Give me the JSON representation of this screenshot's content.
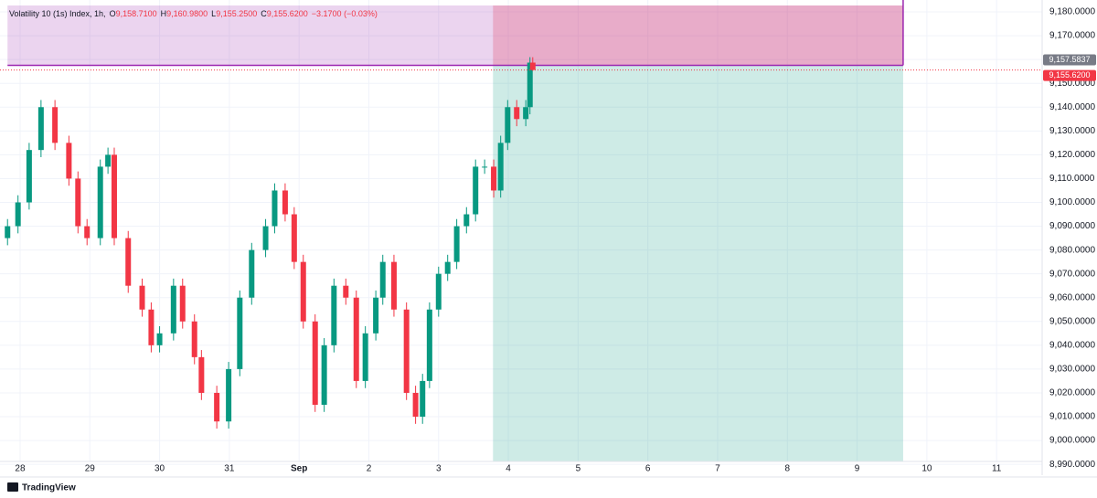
{
  "chart_data": {
    "type": "candlestick",
    "header": {
      "symbol": "Volatility 10 (1s) Index, 1h,",
      "ohlc": [
        {
          "key": "O",
          "text": "9,158.7100"
        },
        {
          "key": "H",
          "text": "9,160.9800"
        },
        {
          "key": "L",
          "text": "9,155.2500"
        },
        {
          "key": "C",
          "text": "9,155.6200"
        }
      ],
      "change": "−3.1700 (−0.03%)"
    },
    "up_color": "#089981",
    "down_color": "#f23645",
    "x": [
      -0.18,
      -0.03,
      0.13,
      0.3,
      0.5,
      0.7,
      0.83,
      0.96,
      1.15,
      1.26,
      1.35,
      1.55,
      1.75,
      1.88,
      2.0,
      2.2,
      2.33,
      2.5,
      2.6,
      2.82,
      2.99,
      3.15,
      3.32,
      3.52,
      3.65,
      3.8,
      3.93,
      4.06,
      4.23,
      4.36,
      4.5,
      4.67,
      4.82,
      4.95,
      5.1,
      5.2,
      5.36,
      5.54,
      5.67,
      5.77,
      5.87,
      6.0,
      6.13,
      6.26,
      6.4,
      6.53,
      6.66,
      6.79,
      6.89,
      6.99,
      7.12,
      7.25,
      7.31,
      7.35
    ],
    "open": [
      9085,
      9090,
      9100,
      9122,
      9140,
      9125,
      9110,
      9090,
      9085,
      9115,
      9120,
      9085,
      9065,
      9055,
      9040,
      9045,
      9065,
      9050,
      9035,
      9020,
      9008,
      9030,
      9060,
      9080,
      9090,
      9105,
      9095,
      9075,
      9050,
      9015,
      9040,
      9065,
      9060,
      9025,
      9045,
      9060,
      9075,
      9055,
      9020,
      9010,
      9025,
      9055,
      9070,
      9075,
      9090,
      9095,
      9115,
      9115,
      9105,
      9125,
      9140,
      9135,
      9140,
      9158.71
    ],
    "high": [
      9093,
      9103,
      9125,
      9143,
      9143,
      9128,
      9113,
      9093,
      9118,
      9123,
      9123,
      9088,
      9068,
      9058,
      9048,
      9068,
      9068,
      9053,
      9038,
      9023,
      9033,
      9063,
      9083,
      9093,
      9108,
      9108,
      9098,
      9078,
      9053,
      9043,
      9068,
      9068,
      9063,
      9048,
      9063,
      9078,
      9078,
      9058,
      9023,
      9028,
      9058,
      9073,
      9078,
      9093,
      9098,
      9118,
      9118,
      9118,
      9128,
      9143,
      9143,
      9143,
      9161,
      9160.98
    ],
    "low": [
      9082,
      9087,
      9097,
      9119,
      9122,
      9107,
      9087,
      9082,
      9082,
      9112,
      9082,
      9062,
      9052,
      9037,
      9037,
      9042,
      9047,
      9032,
      9017,
      9005,
      9005,
      9027,
      9057,
      9077,
      9087,
      9092,
      9072,
      9047,
      9012,
      9012,
      9037,
      9057,
      9022,
      9022,
      9042,
      9057,
      9052,
      9017,
      9007,
      9007,
      9022,
      9052,
      9067,
      9072,
      9087,
      9092,
      9112,
      9102,
      9102,
      9122,
      9132,
      9132,
      9137,
      9155.25
    ],
    "close": [
      9090,
      9100,
      9122,
      9140,
      9125,
      9110,
      9090,
      9085,
      9115,
      9120,
      9085,
      9065,
      9055,
      9040,
      9045,
      9065,
      9050,
      9035,
      9020,
      9008,
      9030,
      9060,
      9080,
      9090,
      9105,
      9095,
      9075,
      9050,
      9015,
      9040,
      9065,
      9060,
      9025,
      9045,
      9060,
      9075,
      9055,
      9020,
      9010,
      9025,
      9055,
      9070,
      9075,
      9090,
      9095,
      9115,
      9115,
      9105,
      9125,
      9140,
      9135,
      9140,
      9158.71,
      9155.62
    ],
    "xlim": [
      -0.288,
      14.653
    ],
    "ylim": [
      8991.2,
      9182.7
    ],
    "xticks": [
      {
        "value": 0,
        "label": "28"
      },
      {
        "value": 1,
        "label": "29"
      },
      {
        "value": 2,
        "label": "30"
      },
      {
        "value": 3,
        "label": "31"
      },
      {
        "value": 4,
        "label": "Sep"
      },
      {
        "value": 5,
        "label": "2"
      },
      {
        "value": 6,
        "label": "3"
      },
      {
        "value": 7,
        "label": "4"
      },
      {
        "value": 8,
        "label": "5"
      },
      {
        "value": 9,
        "label": "6"
      },
      {
        "value": 10,
        "label": "7"
      },
      {
        "value": 11,
        "label": "8"
      },
      {
        "value": 12,
        "label": "9"
      },
      {
        "value": 13,
        "label": "10"
      },
      {
        "value": 14,
        "label": "11"
      }
    ],
    "yticks": [
      {
        "value": 9180,
        "label": "9,180.0000"
      },
      {
        "value": 9170,
        "label": "9,170.0000"
      },
      {
        "value": 9160,
        "label": "9,160.0000"
      },
      {
        "value": 9150,
        "label": "9,150.0000"
      },
      {
        "value": 9140,
        "label": "9,140.0000"
      },
      {
        "value": 9130,
        "label": "9,130.0000"
      },
      {
        "value": 9120,
        "label": "9,120.0000"
      },
      {
        "value": 9110,
        "label": "9,110.0000"
      },
      {
        "value": 9100,
        "label": "9,100.0000"
      },
      {
        "value": 9090,
        "label": "9,090.0000"
      },
      {
        "value": 9080,
        "label": "9,080.0000"
      },
      {
        "value": 9070,
        "label": "9,070.0000"
      },
      {
        "value": 9060,
        "label": "9,060.0000"
      },
      {
        "value": 9050,
        "label": "9,050.0000"
      },
      {
        "value": 9040,
        "label": "9,040.0000"
      },
      {
        "value": 9030,
        "label": "9,030.0000"
      },
      {
        "value": 9020,
        "label": "9,020.0000"
      },
      {
        "value": 9010,
        "label": "9,010.0000"
      },
      {
        "value": 9000,
        "label": "9,000.0000"
      },
      {
        "value": 8990,
        "label": "8,990.0000"
      }
    ],
    "grid": true,
    "zone": {
      "x_start": -0.18,
      "x_end": 12.66,
      "top": 9182.7,
      "bottom": 9157.5837,
      "color": "#9c27b0"
    },
    "position": {
      "x_start": 6.78,
      "x_end": 12.66,
      "entry": 9157.5837,
      "stop": 9182.7,
      "target": 8991.2,
      "stop_color": "#f23645",
      "target_color": "#089981"
    },
    "price_labels": [
      {
        "value": 9157.5837,
        "label": "9,157.5837",
        "color": "#787b86"
      },
      {
        "value": 9155.62,
        "label": "9,155.6200",
        "color": "#f23645"
      }
    ],
    "watermark": "TradingView"
  }
}
